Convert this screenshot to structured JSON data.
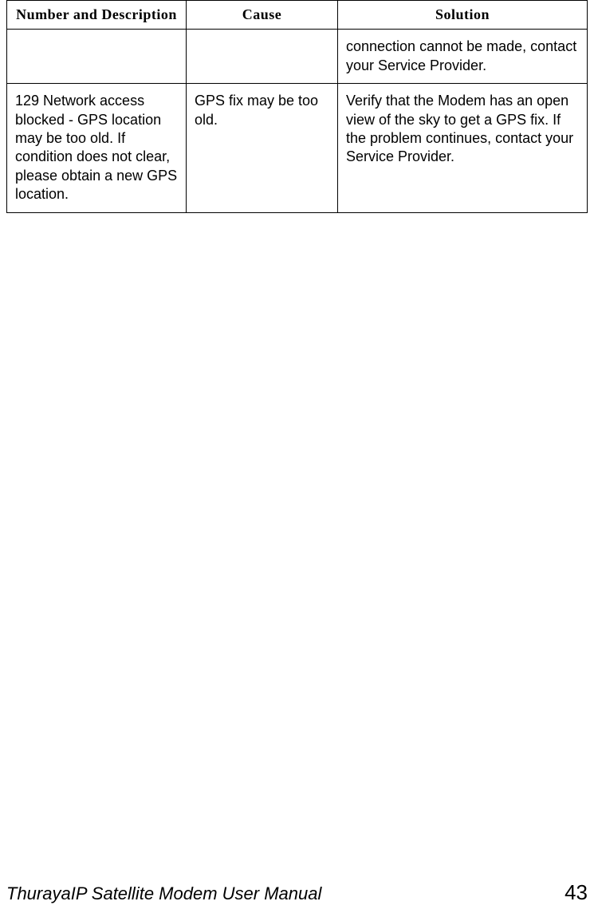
{
  "table": {
    "headers": [
      "Number and Description",
      "Cause",
      "Solution"
    ],
    "rows": [
      {
        "num_desc": "",
        "cause": "",
        "solution": "connection cannot be made, contact your Service Provider."
      },
      {
        "num_desc": "129 Network access blocked - GPS location may be too old. If condition does not clear, please obtain a new GPS location.",
        "cause": "GPS fix may be too old.",
        "solution": "Verify that the Modem has an open view of the sky to get a GPS fix. If the problem continues, contact your Service Provider."
      }
    ],
    "border_color": "#000000",
    "cell_fontsize": 18,
    "header_fontsize": 18
  },
  "footer": {
    "title": "ThurayaIP Satellite Modem User Manual",
    "page": "43"
  }
}
